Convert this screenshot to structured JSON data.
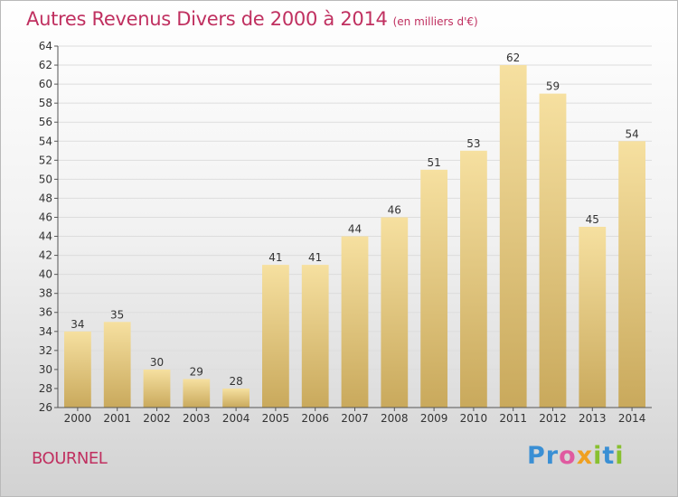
{
  "chart_data": {
    "type": "bar",
    "title": "Autres Revenus Divers de 2000 à 2014",
    "subtitle": "(en milliers d'€)",
    "categories": [
      "2000",
      "2001",
      "2002",
      "2003",
      "2004",
      "2005",
      "2006",
      "2007",
      "2008",
      "2009",
      "2010",
      "2011",
      "2012",
      "2013",
      "2014"
    ],
    "values": [
      34,
      35,
      30,
      29,
      28,
      41,
      41,
      44,
      46,
      51,
      53,
      62,
      59,
      45,
      54
    ],
    "ylim": [
      26,
      64
    ],
    "yticks": [
      26,
      28,
      30,
      32,
      34,
      36,
      38,
      40,
      42,
      44,
      46,
      48,
      50,
      52,
      54,
      56,
      58,
      60,
      62,
      64
    ],
    "grid": true,
    "bar_color": "#e8c873"
  },
  "commune": "BOURNEL",
  "logo": {
    "text": "Proxiti",
    "letters": [
      "P",
      "r",
      "o",
      "x",
      "i",
      "t",
      "i"
    ]
  },
  "colors": {
    "title": "#c03060",
    "axis": "#444444"
  }
}
